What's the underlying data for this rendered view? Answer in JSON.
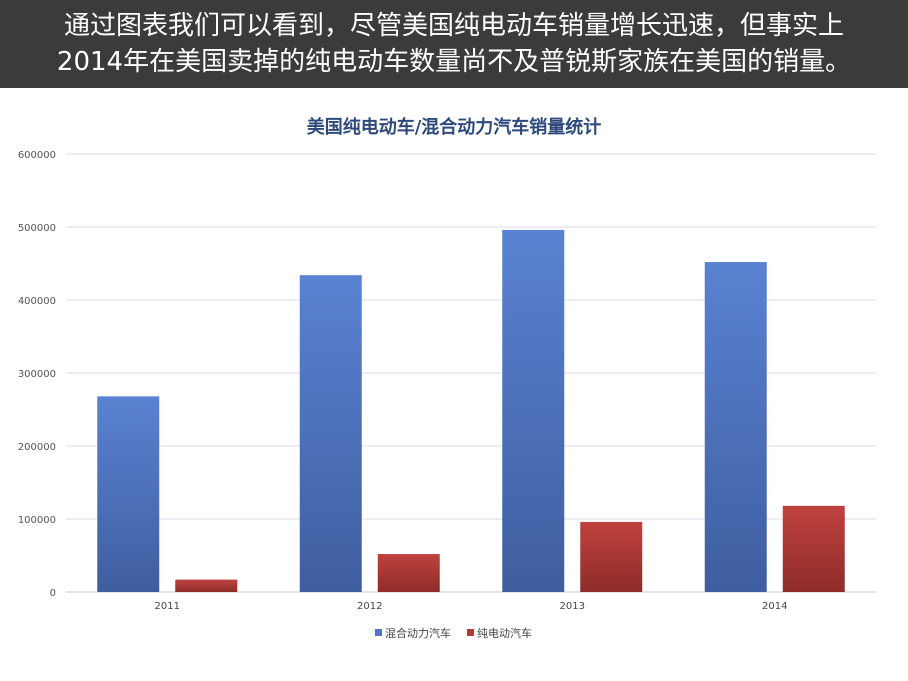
{
  "caption": {
    "line1": "通过图表我们可以看到，尽管美国纯电动车销量增长迅速，但事实上",
    "line2": "2014年在美国卖掉的纯电动车数量尚不及普锐斯家族在美国的销量。"
  },
  "colors": {
    "caption_bg": "#3b3b3b",
    "hybrid": "#4f76c4",
    "electric": "#b43a37",
    "title": "#2e4a7d",
    "grid": "#d9dee8"
  },
  "chart_data": {
    "type": "bar",
    "title": "美国纯电动车/混合动力汽车销量统计",
    "categories": [
      "2011",
      "2012",
      "2013",
      "2014"
    ],
    "series": [
      {
        "name": "混合动力汽车",
        "values": [
          268000,
          434000,
          496000,
          452000
        ]
      },
      {
        "name": "纯电动汽车",
        "values": [
          17000,
          52000,
          96000,
          118000
        ]
      }
    ],
    "ylim": [
      0,
      600000
    ],
    "yticks": [
      0,
      100000,
      200000,
      300000,
      400000,
      500000,
      600000
    ],
    "grid": true,
    "legend_position": "bottom-center"
  }
}
